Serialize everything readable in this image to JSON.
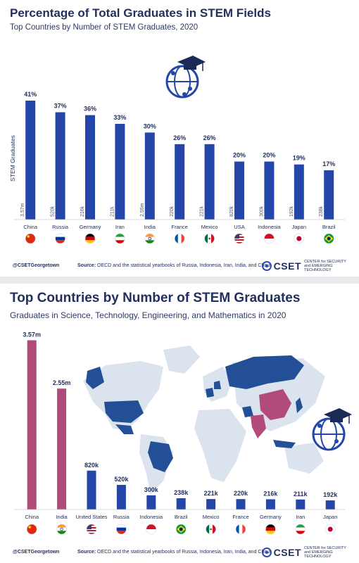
{
  "colors": {
    "blue": "#2346a8",
    "magenta": "#b04a78",
    "map_blue": "#224f96",
    "map_magenta": "#b24a7a",
    "map_light": "#dbe3ef",
    "navy": "#23305e"
  },
  "panel1": {
    "title": "Percentage of Total Graduates in STEM Fields",
    "subtitle": "Top Countries by Number of STEM Graduates, 2020",
    "icon": "graduation-globe-icon",
    "footer": {
      "handle": "@CSETGeorgetown",
      "source_label": "Source:",
      "source_text": "OECD and the statistical yearbooks of Russia, Indonesia, Iran, India, and China",
      "logo": "CSET",
      "logo_sub": "CENTER for SECURITY and EMERGING TECHNOLOGY"
    }
  },
  "panel2": {
    "title": "Top Countries by Number of STEM Graduates",
    "subtitle": "Graduates in Science, Technology, Engineering, and Mathematics in 2020",
    "icon": "graduation-globe-icon",
    "map": "world-map-highlighting-countries",
    "footer": {
      "handle": "@CSETGeorgetown",
      "source_label": "Source:",
      "source_text": "OECD and the statistical yearbooks of Russia, Indonesia, Iran, India, and China",
      "logo": "CSET",
      "logo_sub": "CENTER for SECURITY and EMERGING TECHNOLOGY"
    }
  },
  "chart_data": [
    {
      "type": "bar",
      "title": "Percentage of Total Graduates in STEM Fields",
      "subtitle": "Top Countries by Number of STEM Graduates, 2020",
      "ylabel": "STEM Graduates",
      "categories": [
        "China",
        "Russia",
        "Germany",
        "Iran",
        "India",
        "France",
        "Mexico",
        "USA",
        "Indonesia",
        "Japan",
        "Brazil"
      ],
      "values": [
        41,
        37,
        36,
        33,
        30,
        26,
        26,
        20,
        20,
        19,
        17
      ],
      "value_labels": [
        "41%",
        "37%",
        "36%",
        "33%",
        "30%",
        "26%",
        "26%",
        "20%",
        "20%",
        "19%",
        "17%"
      ],
      "inner_labels": [
        "3.57m",
        "520k",
        "216k",
        "211k",
        "2.55m",
        "220k",
        "221k",
        "820k",
        "300k",
        "192k",
        "238k"
      ],
      "ylim": [
        0,
        45
      ],
      "flags": [
        "china-flag-icon",
        "russia-flag-icon",
        "germany-flag-icon",
        "iran-flag-icon",
        "india-flag-icon",
        "france-flag-icon",
        "mexico-flag-icon",
        "usa-flag-icon",
        "indonesia-flag-icon",
        "japan-flag-icon",
        "brazil-flag-icon"
      ],
      "grid": false
    },
    {
      "type": "bar",
      "title": "Top Countries by Number of STEM Graduates",
      "subtitle": "Graduates in Science, Technology, Engineering, and Mathematics in 2020",
      "categories": [
        "China",
        "India",
        "United States",
        "Russia",
        "Indonesia",
        "Brazil",
        "Mexico",
        "France",
        "Germany",
        "Iran",
        "Japan"
      ],
      "values": [
        3570000,
        2550000,
        820000,
        520000,
        300000,
        238000,
        221000,
        220000,
        216000,
        211000,
        192000
      ],
      "value_labels": [
        "3.57m",
        "2.55m",
        "820k",
        "520k",
        "300k",
        "238k",
        "221k",
        "220k",
        "216k",
        "211k",
        "192k"
      ],
      "highlight": [
        "China",
        "India"
      ],
      "ylim": [
        0,
        3800000
      ],
      "flags": [
        "china-flag-icon",
        "india-flag-icon",
        "usa-flag-icon",
        "russia-flag-icon",
        "indonesia-flag-icon",
        "brazil-flag-icon",
        "mexico-flag-icon",
        "france-flag-icon",
        "germany-flag-icon",
        "iran-flag-icon",
        "japan-flag-icon"
      ],
      "grid": false
    }
  ]
}
